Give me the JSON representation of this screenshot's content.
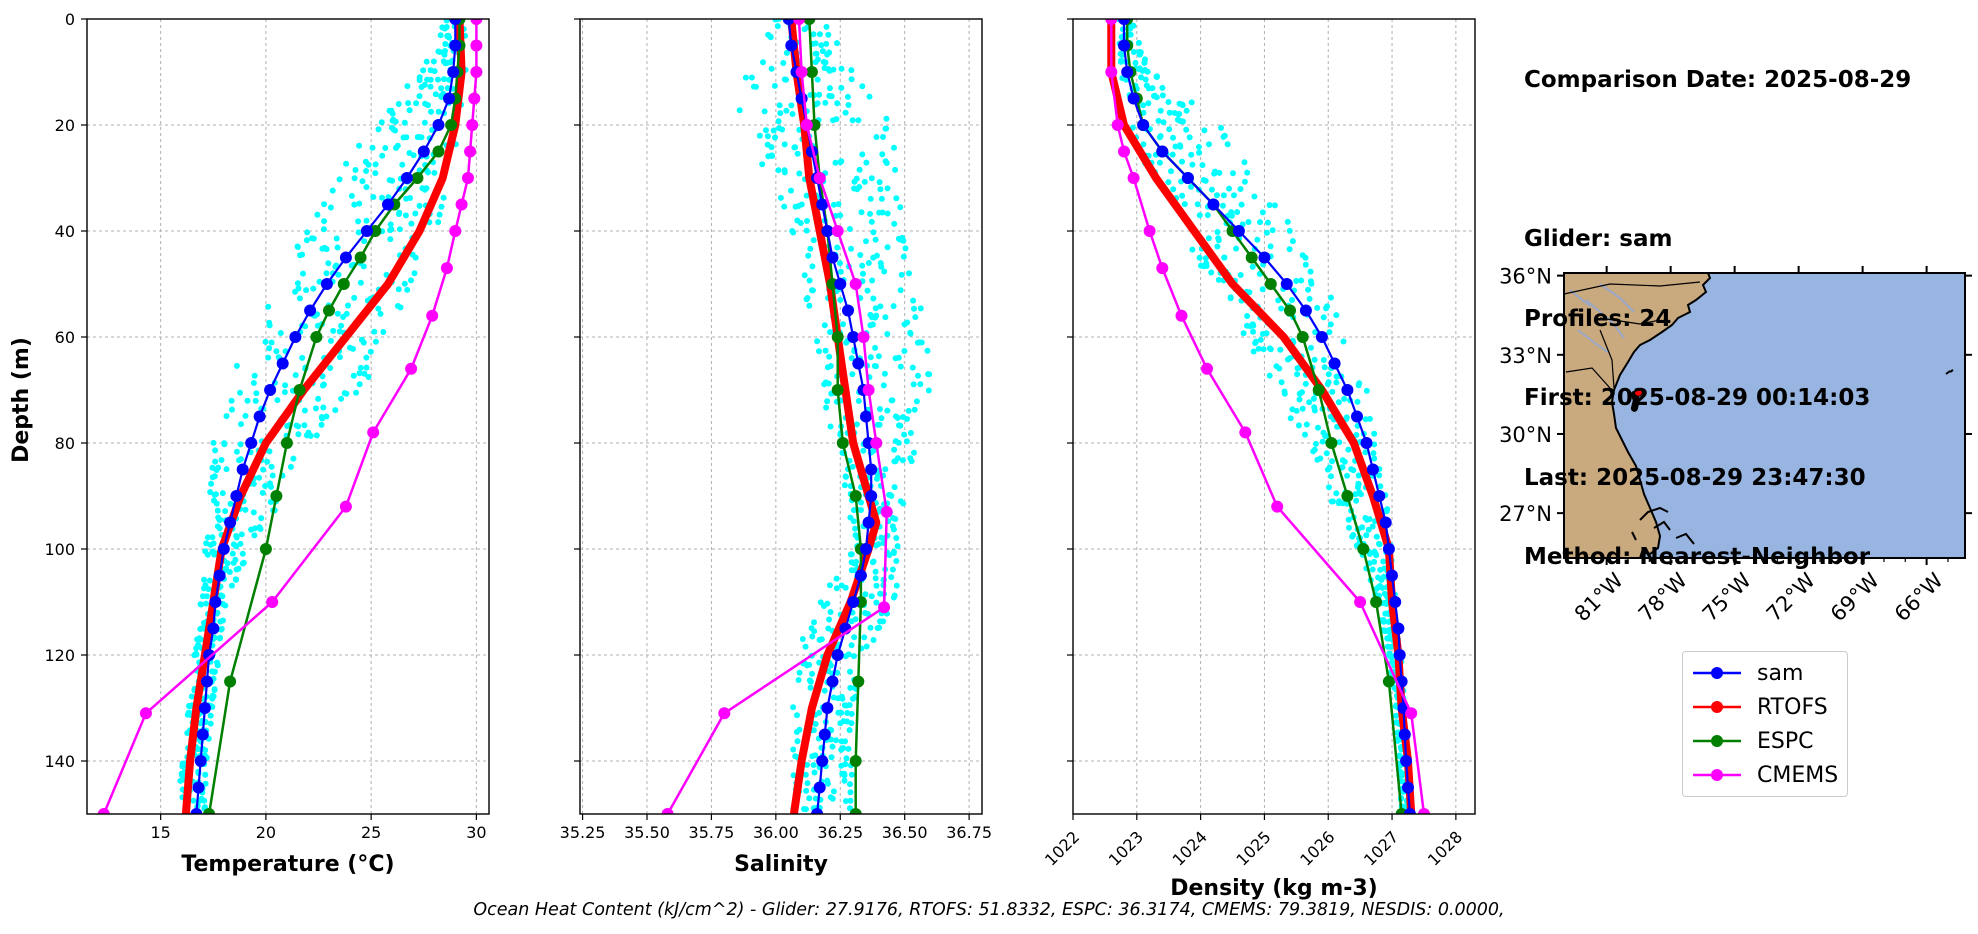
{
  "info": {
    "comparison_date": "Comparison Date: 2025-08-29",
    "glider": "Glider: sam",
    "profiles": "Profiles: 24",
    "first": "First: 2025-08-29 00:14:03",
    "last": "Last: 2025-08-29 23:47:30",
    "method": "Method: Nearest-Neighbor"
  },
  "footer": "Ocean Heat Content (kJ/cm^2) - Glider: 27.9176,  RTOFS: 51.8332,  ESPC: 36.3174,  CMEMS: 79.3819,  NESDIS: 0.0000,",
  "colors": {
    "glider": "#0000ff",
    "rtofs": "#ff0000",
    "espc": "#008000",
    "cmems": "#ff00ff",
    "scatter": "#00ffff",
    "land": "#c9a97e",
    "ocean": "#98b5e1"
  },
  "legend": [
    "sam",
    "RTOFS",
    "ESPC",
    "CMEMS"
  ],
  "map": {
    "lat_labels": [
      "36°N",
      "33°N",
      "30°N",
      "27°N"
    ],
    "lon_labels": [
      "81°W",
      "78°W",
      "75°W",
      "72°W",
      "69°W",
      "66°W"
    ],
    "glider_position": {
      "lon": -79.7,
      "lat": 31.2
    }
  },
  "chart_data": [
    {
      "type": "line",
      "title": "",
      "xlabel": "Temperature (°C)",
      "ylabel": "Depth (m)",
      "xlim": [
        11.5,
        30.6
      ],
      "ylim": [
        150,
        0
      ],
      "xticks": [
        15,
        20,
        25,
        30
      ],
      "yticks": [
        0,
        20,
        40,
        60,
        80,
        100,
        120,
        140
      ],
      "series": [
        {
          "name": "sam",
          "depth": [
            0,
            5,
            10,
            15,
            20,
            25,
            30,
            35,
            40,
            45,
            50,
            55,
            60,
            65,
            70,
            75,
            80,
            85,
            90,
            95,
            100,
            105,
            110,
            115,
            120,
            125,
            130,
            135,
            140,
            145,
            150
          ],
          "values": [
            29.0,
            29.0,
            28.9,
            28.7,
            28.2,
            27.5,
            26.7,
            25.8,
            24.8,
            23.8,
            22.9,
            22.1,
            21.4,
            20.8,
            20.2,
            19.7,
            19.3,
            18.9,
            18.6,
            18.3,
            18.0,
            17.8,
            17.6,
            17.5,
            17.3,
            17.2,
            17.1,
            17.0,
            16.9,
            16.8,
            16.7
          ]
        },
        {
          "name": "RTOFS",
          "depth": [
            0,
            10,
            20,
            30,
            40,
            50,
            60,
            70,
            80,
            90,
            100,
            110,
            120,
            130,
            140,
            150
          ],
          "values": [
            29.2,
            29.3,
            29.0,
            28.4,
            27.3,
            25.8,
            23.8,
            21.8,
            20.0,
            18.8,
            17.9,
            17.5,
            17.1,
            16.7,
            16.4,
            16.2
          ]
        },
        {
          "name": "ESPC",
          "depth": [
            0,
            5,
            10,
            15,
            20,
            25,
            30,
            35,
            40,
            45,
            50,
            55,
            60,
            70,
            80,
            90,
            100,
            125,
            150
          ],
          "values": [
            29.2,
            29.2,
            29.1,
            29.0,
            28.8,
            28.2,
            27.2,
            26.1,
            25.2,
            24.5,
            23.7,
            23.0,
            22.4,
            21.6,
            21.0,
            20.5,
            20.0,
            18.3,
            17.3
          ]
        },
        {
          "name": "CMEMS",
          "depth": [
            0,
            5,
            10,
            15,
            20,
            25,
            30,
            35,
            40,
            47,
            56,
            66,
            78,
            92,
            110,
            131,
            150
          ],
          "values": [
            30.0,
            30.0,
            30.0,
            29.9,
            29.8,
            29.7,
            29.6,
            29.3,
            29.0,
            28.6,
            27.9,
            26.9,
            25.1,
            23.8,
            20.3,
            14.3,
            12.3
          ]
        },
        {
          "name": "glider profiles (scatter)",
          "depth": [
            0,
            10,
            20,
            30,
            40,
            50,
            60,
            70,
            80,
            90,
            100,
            110,
            120,
            130,
            140,
            150
          ],
          "min": [
            28.4,
            27.4,
            24.9,
            23.2,
            21.8,
            20.6,
            19.4,
            17.9,
            17.5,
            17.3,
            17.1,
            16.9,
            16.6,
            16.3,
            16.0,
            15.8
          ],
          "max": [
            29.5,
            29.5,
            29.3,
            28.9,
            28.1,
            27.1,
            26.1,
            24.5,
            22.2,
            21.0,
            19.2,
            18.2,
            17.8,
            17.5,
            17.3,
            17.1
          ]
        }
      ]
    },
    {
      "type": "line",
      "title": "",
      "xlabel": "Salinity",
      "ylabel": "",
      "xlim": [
        35.24,
        36.8
      ],
      "ylim": [
        150,
        0
      ],
      "xticks": [
        35.25,
        35.5,
        35.75,
        36.0,
        36.25,
        36.5,
        36.75
      ],
      "xticklabels": [
        "35.25",
        "35.50",
        "35.75",
        "36.00",
        "36.25",
        "36.50",
        "36.75"
      ],
      "series": [
        {
          "name": "sam",
          "depth": [
            0,
            5,
            10,
            15,
            20,
            25,
            30,
            35,
            40,
            45,
            50,
            55,
            60,
            65,
            70,
            75,
            80,
            85,
            90,
            95,
            100,
            105,
            110,
            115,
            120,
            125,
            130,
            135,
            140,
            145,
            150
          ],
          "values": [
            36.05,
            36.06,
            36.08,
            36.1,
            36.12,
            36.14,
            36.16,
            36.18,
            36.2,
            36.22,
            36.25,
            36.28,
            36.3,
            36.32,
            36.34,
            36.35,
            36.36,
            36.37,
            36.37,
            36.36,
            36.35,
            36.33,
            36.3,
            36.27,
            36.24,
            36.22,
            36.2,
            36.19,
            36.18,
            36.17,
            36.16
          ]
        },
        {
          "name": "RTOFS",
          "depth": [
            0,
            10,
            20,
            30,
            40,
            50,
            60,
            70,
            80,
            90,
            95,
            100,
            110,
            120,
            130,
            140,
            150
          ],
          "values": [
            36.06,
            36.08,
            36.11,
            36.13,
            36.17,
            36.21,
            36.24,
            36.27,
            36.3,
            36.36,
            36.39,
            36.36,
            36.29,
            36.2,
            36.14,
            36.1,
            36.07
          ]
        },
        {
          "name": "ESPC",
          "depth": [
            0,
            10,
            20,
            30,
            40,
            50,
            60,
            70,
            80,
            90,
            100,
            110,
            125,
            140,
            150
          ],
          "values": [
            36.13,
            36.14,
            36.15,
            36.17,
            36.2,
            36.22,
            36.24,
            36.24,
            36.26,
            36.31,
            36.33,
            36.33,
            36.32,
            36.31,
            36.31
          ]
        },
        {
          "name": "CMEMS",
          "depth": [
            0,
            10,
            20,
            30,
            40,
            50,
            60,
            70,
            80,
            93,
            111,
            131,
            150
          ],
          "values": [
            36.09,
            36.1,
            36.12,
            36.17,
            36.24,
            36.31,
            36.34,
            36.36,
            36.39,
            36.43,
            36.42,
            35.8,
            35.58
          ]
        },
        {
          "name": "glider profiles (scatter)",
          "depth": [
            0,
            10,
            20,
            30,
            40,
            50,
            60,
            70,
            80,
            90,
            100,
            110,
            120,
            130,
            140,
            150
          ],
          "min": [
            35.98,
            35.88,
            35.85,
            35.95,
            36.05,
            36.1,
            36.15,
            36.18,
            36.22,
            36.28,
            36.3,
            36.15,
            36.08,
            36.06,
            36.06,
            36.06
          ],
          "max": [
            36.18,
            36.3,
            36.45,
            36.5,
            36.5,
            36.55,
            36.6,
            36.6,
            36.55,
            36.5,
            36.48,
            36.47,
            36.35,
            36.3,
            36.3,
            36.3
          ]
        }
      ]
    },
    {
      "type": "line",
      "title": "",
      "xlabel": "Density (kg m-3)",
      "ylabel": "",
      "xlim": [
        1022,
        1028.3
      ],
      "ylim": [
        150,
        0
      ],
      "xticks": [
        1022,
        1023,
        1024,
        1025,
        1026,
        1027,
        1028
      ],
      "series": [
        {
          "name": "sam",
          "depth": [
            0,
            5,
            10,
            15,
            20,
            25,
            30,
            35,
            40,
            45,
            50,
            55,
            60,
            65,
            70,
            75,
            80,
            85,
            90,
            95,
            100,
            105,
            110,
            115,
            120,
            125,
            130,
            135,
            140,
            145,
            150
          ],
          "values": [
            1022.8,
            1022.8,
            1022.85,
            1022.95,
            1023.1,
            1023.4,
            1023.8,
            1024.2,
            1024.6,
            1025.0,
            1025.35,
            1025.65,
            1025.9,
            1026.1,
            1026.3,
            1026.45,
            1026.6,
            1026.7,
            1026.8,
            1026.9,
            1026.95,
            1027.0,
            1027.05,
            1027.1,
            1027.12,
            1027.15,
            1027.18,
            1027.2,
            1027.22,
            1027.25,
            1027.28
          ]
        },
        {
          "name": "RTOFS",
          "depth": [
            0,
            10,
            20,
            30,
            40,
            50,
            60,
            70,
            80,
            90,
            100,
            110,
            120,
            130,
            140,
            150
          ],
          "values": [
            1022.6,
            1022.6,
            1022.8,
            1023.3,
            1023.9,
            1024.5,
            1025.3,
            1025.9,
            1026.4,
            1026.7,
            1026.95,
            1027.0,
            1027.1,
            1027.15,
            1027.25,
            1027.3
          ]
        },
        {
          "name": "ESPC",
          "depth": [
            0,
            5,
            10,
            15,
            20,
            25,
            30,
            35,
            40,
            45,
            50,
            55,
            60,
            70,
            80,
            90,
            100,
            110,
            125,
            150
          ],
          "values": [
            1022.85,
            1022.85,
            1022.9,
            1023.0,
            1023.1,
            1023.4,
            1023.8,
            1024.2,
            1024.5,
            1024.8,
            1025.1,
            1025.4,
            1025.6,
            1025.85,
            1026.05,
            1026.3,
            1026.55,
            1026.75,
            1026.95,
            1027.15
          ]
        },
        {
          "name": "CMEMS",
          "depth": [
            0,
            10,
            20,
            25,
            30,
            40,
            47,
            56,
            66,
            78,
            92,
            110,
            131,
            150
          ],
          "values": [
            1022.6,
            1022.6,
            1022.7,
            1022.8,
            1022.95,
            1023.2,
            1023.4,
            1023.7,
            1024.1,
            1024.7,
            1025.2,
            1026.5,
            1027.3,
            1027.5
          ]
        },
        {
          "name": "glider profiles (scatter)",
          "depth": [
            0,
            10,
            20,
            30,
            40,
            50,
            60,
            70,
            80,
            90,
            100,
            110,
            120,
            130,
            140,
            150
          ],
          "min": [
            1022.7,
            1022.75,
            1022.9,
            1023.15,
            1023.65,
            1024.2,
            1024.6,
            1025.2,
            1025.6,
            1026.0,
            1026.45,
            1026.75,
            1026.95,
            1027.05,
            1027.1,
            1027.15
          ],
          "max": [
            1022.9,
            1023.2,
            1024.3,
            1024.9,
            1025.5,
            1026.0,
            1026.3,
            1026.6,
            1026.8,
            1026.9,
            1027.0,
            1027.05,
            1027.15,
            1027.2,
            1027.25,
            1027.3
          ]
        }
      ]
    }
  ]
}
